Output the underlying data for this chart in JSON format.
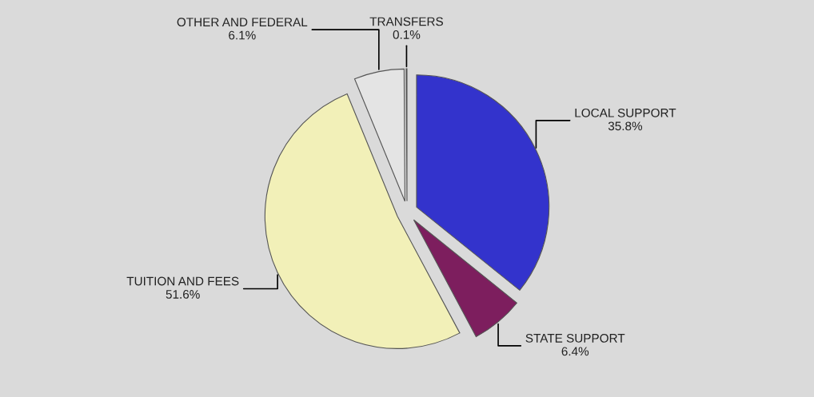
{
  "chart_data": {
    "type": "pie",
    "categories": [
      "LOCAL SUPPORT",
      "STATE SUPPORT",
      "TUITION AND FEES",
      "OTHER AND FEDERAL",
      "TRANSFERS"
    ],
    "values": [
      35.8,
      6.4,
      51.6,
      6.1,
      0.1
    ],
    "value_labels": [
      "35.8%",
      "6.4%",
      "51.6%",
      "6.1%",
      "0.1%"
    ],
    "colors": [
      "#3333cc",
      "#7d1e5e",
      "#f2f0b8",
      "#e4e4e4",
      "#f5f5f5"
    ],
    "legend": false
  }
}
